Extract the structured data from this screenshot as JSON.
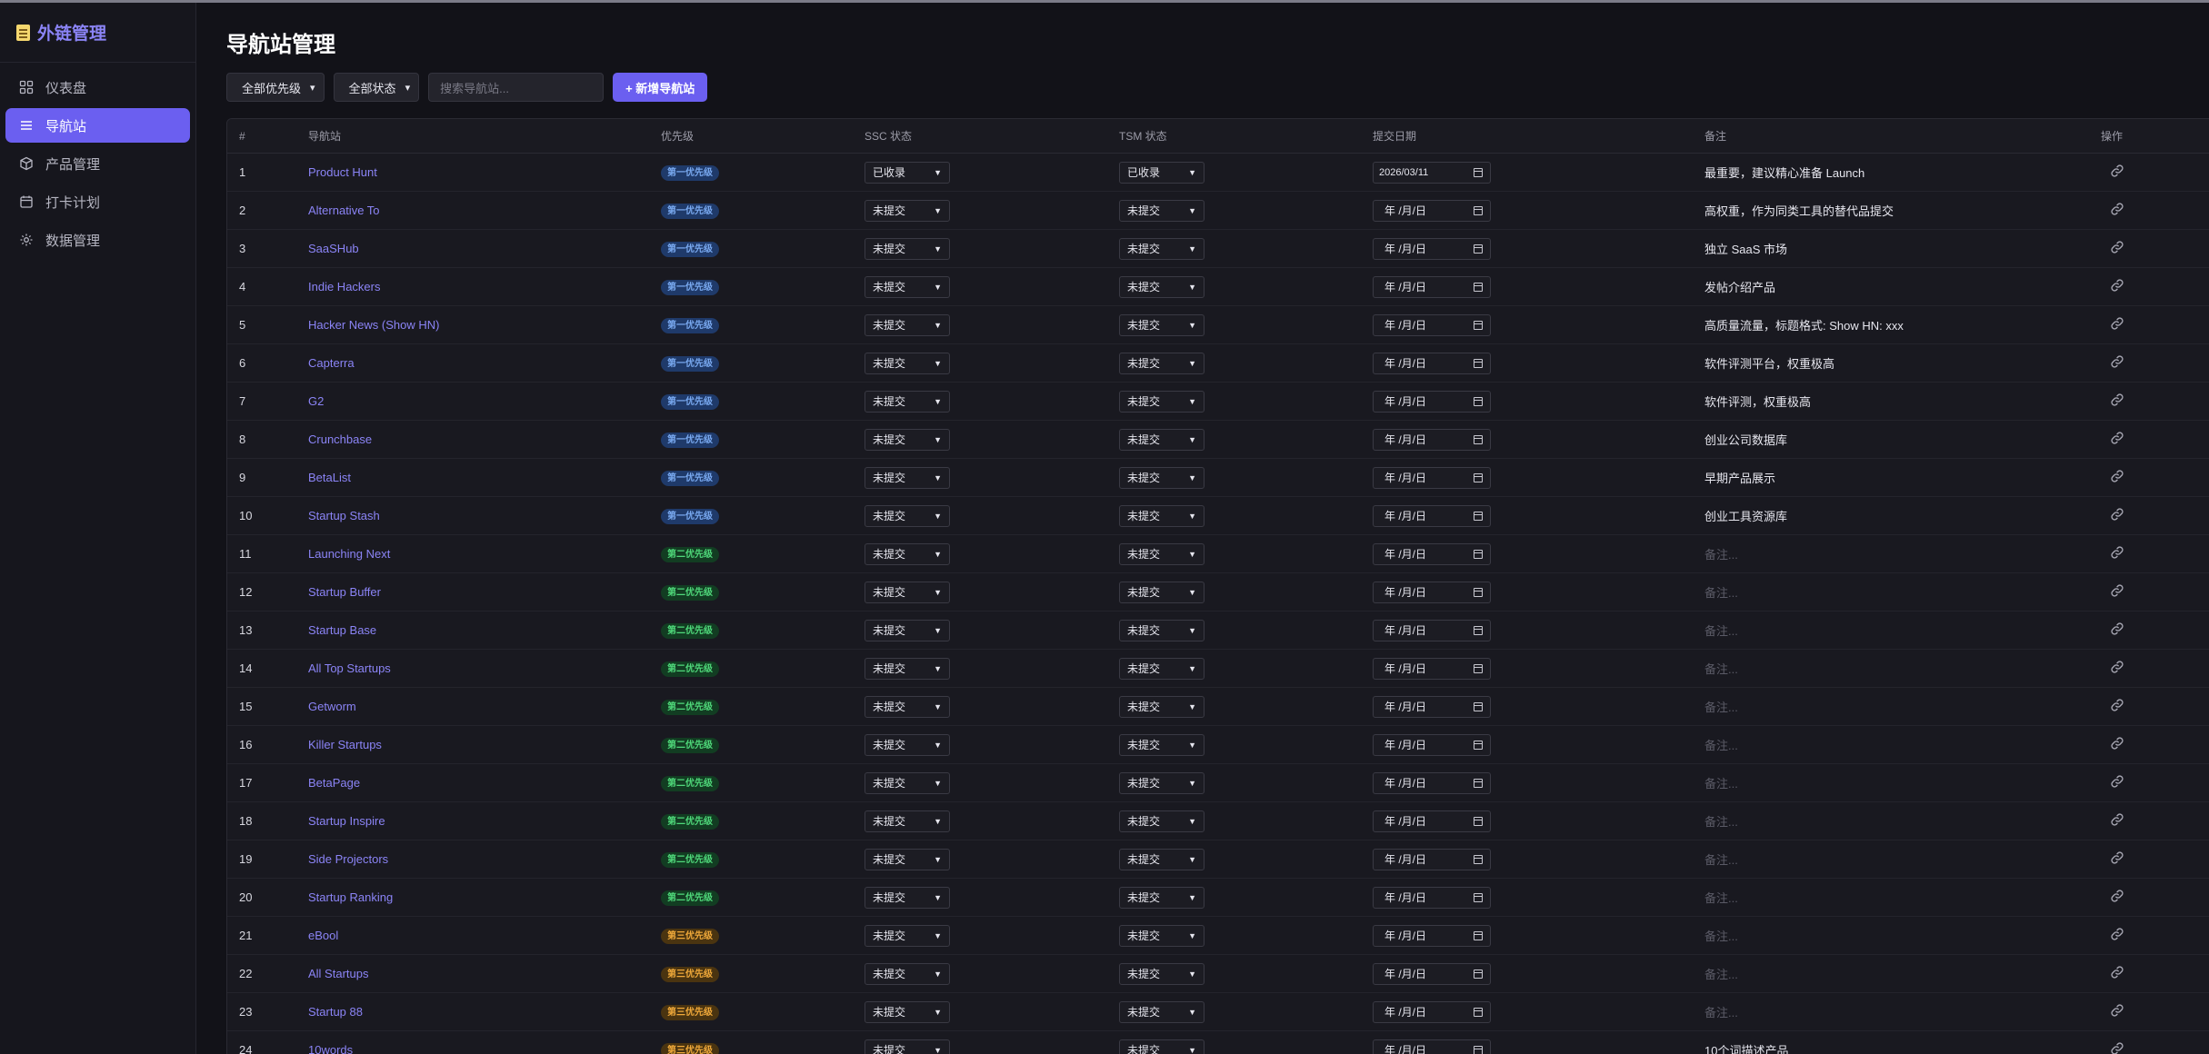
{
  "app": {
    "title": "外链管理"
  },
  "sidebar": {
    "items": [
      {
        "label": "仪表盘",
        "icon": "dashboard-icon",
        "active": false
      },
      {
        "label": "导航站",
        "icon": "list-icon",
        "active": true
      },
      {
        "label": "产品管理",
        "icon": "box-icon",
        "active": false
      },
      {
        "label": "打卡计划",
        "icon": "calendar-icon",
        "active": false
      },
      {
        "label": "数据管理",
        "icon": "gear-icon",
        "active": false
      }
    ]
  },
  "page": {
    "title": "导航站管理"
  },
  "filters": {
    "priority": "全部优先级",
    "status": "全部状态",
    "search_placeholder": "搜索导航站...",
    "add_label": "+ 新增导航站"
  },
  "table": {
    "columns": [
      "#",
      "导航站",
      "优先级",
      "SSC 状态",
      "TSM 状态",
      "提交日期",
      "备注",
      "操作"
    ],
    "rows": [
      {
        "idx": "1",
        "name": "Product Hunt",
        "priority": "第一优先级",
        "level": "p1",
        "ssc": "已收录",
        "tsm": "已收录",
        "date": "2026/03/11",
        "note": "最重要，建议精心准备 Launch"
      },
      {
        "idx": "2",
        "name": "Alternative To",
        "priority": "第一优先级",
        "level": "p1",
        "ssc": "未提交",
        "tsm": "未提交",
        "date": "年 /月/日",
        "note": "高权重，作为同类工具的替代品提交"
      },
      {
        "idx": "3",
        "name": "SaaSHub",
        "priority": "第一优先级",
        "level": "p1",
        "ssc": "未提交",
        "tsm": "未提交",
        "date": "年 /月/日",
        "note": "独立 SaaS 市场"
      },
      {
        "idx": "4",
        "name": "Indie Hackers",
        "priority": "第一优先级",
        "level": "p1",
        "ssc": "未提交",
        "tsm": "未提交",
        "date": "年 /月/日",
        "note": "发帖介绍产品"
      },
      {
        "idx": "5",
        "name": "Hacker News (Show HN)",
        "priority": "第一优先级",
        "level": "p1",
        "ssc": "未提交",
        "tsm": "未提交",
        "date": "年 /月/日",
        "note": "高质量流量，标题格式: Show HN: xxx"
      },
      {
        "idx": "6",
        "name": "Capterra",
        "priority": "第一优先级",
        "level": "p1",
        "ssc": "未提交",
        "tsm": "未提交",
        "date": "年 /月/日",
        "note": "软件评测平台，权重极高"
      },
      {
        "idx": "7",
        "name": "G2",
        "priority": "第一优先级",
        "level": "p1",
        "ssc": "未提交",
        "tsm": "未提交",
        "date": "年 /月/日",
        "note": "软件评测，权重极高"
      },
      {
        "idx": "8",
        "name": "Crunchbase",
        "priority": "第一优先级",
        "level": "p1",
        "ssc": "未提交",
        "tsm": "未提交",
        "date": "年 /月/日",
        "note": "创业公司数据库"
      },
      {
        "idx": "9",
        "name": "BetaList",
        "priority": "第一优先级",
        "level": "p1",
        "ssc": "未提交",
        "tsm": "未提交",
        "date": "年 /月/日",
        "note": "早期产品展示"
      },
      {
        "idx": "10",
        "name": "Startup Stash",
        "priority": "第一优先级",
        "level": "p1",
        "ssc": "未提交",
        "tsm": "未提交",
        "date": "年 /月/日",
        "note": "创业工具资源库"
      },
      {
        "idx": "11",
        "name": "Launching Next",
        "priority": "第二优先级",
        "level": "p2",
        "ssc": "未提交",
        "tsm": "未提交",
        "date": "年 /月/日",
        "note": "备注..."
      },
      {
        "idx": "12",
        "name": "Startup Buffer",
        "priority": "第二优先级",
        "level": "p2",
        "ssc": "未提交",
        "tsm": "未提交",
        "date": "年 /月/日",
        "note": "备注..."
      },
      {
        "idx": "13",
        "name": "Startup Base",
        "priority": "第二优先级",
        "level": "p2",
        "ssc": "未提交",
        "tsm": "未提交",
        "date": "年 /月/日",
        "note": "备注..."
      },
      {
        "idx": "14",
        "name": "All Top Startups",
        "priority": "第二优先级",
        "level": "p2",
        "ssc": "未提交",
        "tsm": "未提交",
        "date": "年 /月/日",
        "note": "备注..."
      },
      {
        "idx": "15",
        "name": "Getworm",
        "priority": "第二优先级",
        "level": "p2",
        "ssc": "未提交",
        "tsm": "未提交",
        "date": "年 /月/日",
        "note": "备注..."
      },
      {
        "idx": "16",
        "name": "Killer Startups",
        "priority": "第二优先级",
        "level": "p2",
        "ssc": "未提交",
        "tsm": "未提交",
        "date": "年 /月/日",
        "note": "备注..."
      },
      {
        "idx": "17",
        "name": "BetaPage",
        "priority": "第二优先级",
        "level": "p2",
        "ssc": "未提交",
        "tsm": "未提交",
        "date": "年 /月/日",
        "note": "备注..."
      },
      {
        "idx": "18",
        "name": "Startup Inspire",
        "priority": "第二优先级",
        "level": "p2",
        "ssc": "未提交",
        "tsm": "未提交",
        "date": "年 /月/日",
        "note": "备注..."
      },
      {
        "idx": "19",
        "name": "Side Projectors",
        "priority": "第二优先级",
        "level": "p2",
        "ssc": "未提交",
        "tsm": "未提交",
        "date": "年 /月/日",
        "note": "备注..."
      },
      {
        "idx": "20",
        "name": "Startup Ranking",
        "priority": "第二优先级",
        "level": "p2",
        "ssc": "未提交",
        "tsm": "未提交",
        "date": "年 /月/日",
        "note": "备注..."
      },
      {
        "idx": "21",
        "name": "eBool",
        "priority": "第三优先级",
        "level": "p3",
        "ssc": "未提交",
        "tsm": "未提交",
        "date": "年 /月/日",
        "note": "备注..."
      },
      {
        "idx": "22",
        "name": "All Startups",
        "priority": "第三优先级",
        "level": "p3",
        "ssc": "未提交",
        "tsm": "未提交",
        "date": "年 /月/日",
        "note": "备注..."
      },
      {
        "idx": "23",
        "name": "Startup 88",
        "priority": "第三优先级",
        "level": "p3",
        "ssc": "未提交",
        "tsm": "未提交",
        "date": "年 /月/日",
        "note": "备注..."
      },
      {
        "idx": "24",
        "name": "10words",
        "priority": "第三优先级",
        "level": "p3",
        "ssc": "未提交",
        "tsm": "未提交",
        "date": "年 /月/日",
        "note": "10个词描述产品"
      }
    ]
  },
  "colors": {
    "accent": "#6b5ff0",
    "link": "#8b84f6",
    "p1": "#79a9f0",
    "p2": "#4fd87a",
    "p3": "#f0a93a"
  }
}
